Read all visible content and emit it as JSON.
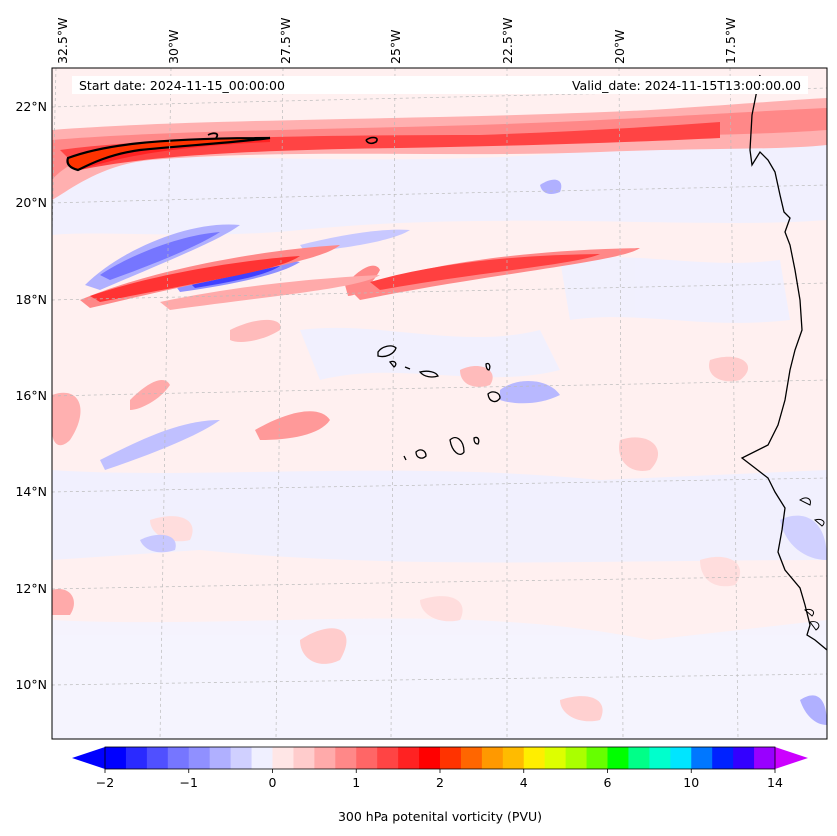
{
  "map": {
    "start_date": "Start date: 2024-11-15_00:00:00",
    "valid_date": "Valid_date: 2024-11-15T13:00:00.00",
    "lon_labels": [
      "32.5°W",
      "30°W",
      "27.5°W",
      "25°W",
      "22.5°W",
      "20°W",
      "17.5°W"
    ],
    "lat_labels": [
      "22°N",
      "20°N",
      "18°N",
      "16°N",
      "14°N",
      "12°N",
      "10°N"
    ],
    "colors": {
      "coast": "#000000",
      "grid": "#bbbbbb",
      "background": "#f0f0ff"
    }
  },
  "colorbar": {
    "label": "300 hPa potenital vorticity (PVU)",
    "ticks": [
      "−2",
      "−1",
      "0",
      "1",
      "2",
      "4",
      "6",
      "10",
      "14"
    ],
    "colors": [
      "#0000ff",
      "#2a2aff",
      "#5050ff",
      "#7676ff",
      "#9090ff",
      "#b0b0ff",
      "#d0d0ff",
      "#f0f0ff",
      "#ffe6e6",
      "#ffcccc",
      "#ffaaaa",
      "#ff8888",
      "#ff6666",
      "#ff4444",
      "#ff2222",
      "#ff0000",
      "#ff3300",
      "#ff6600",
      "#ff9900",
      "#ffbb00",
      "#ffee00",
      "#ddff00",
      "#aaff00",
      "#66ff00",
      "#00ff00",
      "#00ff88",
      "#00ffcc",
      "#00e5ff",
      "#0077ff",
      "#0022ff",
      "#3300ff",
      "#9900ff"
    ],
    "extend_low": "#0000ff",
    "extend_high": "#cc00ff"
  }
}
